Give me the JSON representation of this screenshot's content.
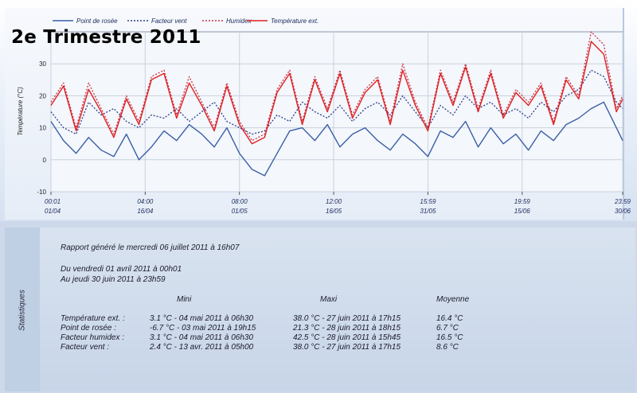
{
  "page": {
    "headline": "2e Trimestre 2011"
  },
  "chart_data": {
    "type": "line",
    "ylabel": "Température (°C)",
    "ylim": [
      -10,
      40
    ],
    "yticks": [
      -10,
      0,
      10,
      20,
      30
    ],
    "grid": true,
    "legend_position": "top",
    "x_tick_labels": [
      {
        "time": "00:01",
        "date": "01/04"
      },
      {
        "time": "04:00",
        "date": "16/04"
      },
      {
        "time": "08:00",
        "date": "01/05"
      },
      {
        "time": "12:00",
        "date": "16/05"
      },
      {
        "time": "15:59",
        "date": "31/05"
      },
      {
        "time": "19:59",
        "date": "15/06"
      },
      {
        "time": "23:59",
        "date": "30/06"
      }
    ],
    "x_days": [
      0,
      15,
      30,
      45,
      60,
      75,
      91
    ],
    "series": [
      {
        "name": "Point de rosée",
        "color": "#3a5fa8",
        "dash": "solid",
        "x": [
          0,
          2,
          4,
          6,
          8,
          10,
          12,
          14,
          16,
          18,
          20,
          22,
          24,
          26,
          28,
          30,
          32,
          34,
          36,
          38,
          40,
          42,
          44,
          46,
          48,
          50,
          52,
          54,
          56,
          58,
          60,
          62,
          64,
          66,
          68,
          70,
          72,
          74,
          76,
          78,
          80,
          82,
          84,
          86,
          88,
          90,
          91
        ],
        "y": [
          12,
          6,
          2,
          7,
          3,
          1,
          8,
          0,
          4,
          9,
          6,
          11,
          8,
          4,
          10,
          2,
          -3,
          -5,
          2,
          9,
          10,
          6,
          11,
          4,
          8,
          10,
          6,
          3,
          8,
          5,
          1,
          9,
          7,
          12,
          4,
          10,
          5,
          8,
          3,
          9,
          6,
          11,
          13,
          16,
          18,
          10,
          6
        ]
      },
      {
        "name": "Facteur vent",
        "color": "#2b3f8a",
        "dash": "dotted",
        "x": [
          0,
          2,
          4,
          6,
          8,
          10,
          12,
          14,
          16,
          18,
          20,
          22,
          24,
          26,
          28,
          30,
          32,
          34,
          36,
          38,
          40,
          42,
          44,
          46,
          48,
          50,
          52,
          54,
          56,
          58,
          60,
          62,
          64,
          66,
          68,
          70,
          72,
          74,
          76,
          78,
          80,
          82,
          84,
          86,
          88,
          90,
          91
        ],
        "y": [
          15,
          10,
          8,
          18,
          14,
          16,
          12,
          10,
          14,
          13,
          16,
          12,
          15,
          18,
          12,
          10,
          8,
          9,
          14,
          12,
          18,
          15,
          13,
          17,
          12,
          16,
          18,
          14,
          20,
          15,
          10,
          17,
          14,
          20,
          16,
          18,
          14,
          16,
          13,
          18,
          15,
          20,
          22,
          28,
          26,
          18,
          16
        ]
      },
      {
        "name": "Humidex",
        "color": "#c8324a",
        "dash": "dotted",
        "x": [
          0,
          2,
          4,
          6,
          8,
          10,
          12,
          14,
          16,
          18,
          20,
          22,
          24,
          26,
          28,
          30,
          32,
          34,
          36,
          38,
          40,
          42,
          44,
          46,
          48,
          50,
          52,
          54,
          56,
          58,
          60,
          62,
          64,
          66,
          68,
          70,
          72,
          74,
          76,
          78,
          80,
          82,
          84,
          86,
          88,
          90,
          91
        ],
        "y": [
          18,
          24,
          10,
          24,
          16,
          8,
          20,
          12,
          26,
          28,
          14,
          26,
          18,
          10,
          24,
          12,
          6,
          8,
          22,
          28,
          12,
          26,
          16,
          28,
          14,
          22,
          26,
          12,
          30,
          18,
          10,
          28,
          18,
          30,
          16,
          28,
          14,
          22,
          18,
          24,
          12,
          26,
          20,
          40,
          36,
          16,
          20
        ]
      },
      {
        "name": "Température ext.",
        "color": "#e02020",
        "dash": "solid",
        "x": [
          0,
          2,
          4,
          6,
          8,
          10,
          12,
          14,
          16,
          18,
          20,
          22,
          24,
          26,
          28,
          30,
          32,
          34,
          36,
          38,
          40,
          42,
          44,
          46,
          48,
          50,
          52,
          54,
          56,
          58,
          60,
          62,
          64,
          66,
          68,
          70,
          72,
          74,
          76,
          78,
          80,
          82,
          84,
          86,
          88,
          90,
          91
        ],
        "y": [
          17,
          23,
          9,
          22,
          15,
          7,
          19,
          11,
          25,
          27,
          13,
          24,
          17,
          9,
          23,
          11,
          5,
          7,
          21,
          27,
          11,
          25,
          15,
          27,
          13,
          21,
          25,
          11,
          28,
          17,
          9,
          27,
          17,
          29,
          15,
          27,
          13,
          21,
          17,
          23,
          11,
          25,
          19,
          37,
          33,
          15,
          19
        ]
      }
    ]
  },
  "statistics": {
    "side_label": "Statistiques",
    "report_line": "Rapport généré le mercredi 06 juillet 2011 à 16h07",
    "period_from": "Du vendredi 01 avril 2011 à 00h01",
    "period_to": "Au jeudi 30 juin 2011 à 23h59",
    "col_min": "Mini",
    "col_max": "Maxi",
    "col_avg": "Moyenne",
    "rows": [
      {
        "label": "Température ext. :",
        "min": "3.1 °C - 04 mai 2011 à 06h30",
        "max": "38.0 °C - 27 juin 2011 à 17h15",
        "avg": "16.4 °C"
      },
      {
        "label": "Point de rosée :",
        "min": "-6.7 °C - 03 mai 2011 à 19h15",
        "max": "21.3 °C - 28 juin 2011 à 18h15",
        "avg": "6.7 °C"
      },
      {
        "label": "Facteur humidex :",
        "min": "3.1 °C - 04 mai 2011 à 06h30",
        "max": "42.5 °C - 28 juin 2011 à 15h45",
        "avg": "16.5 °C"
      },
      {
        "label": "Facteur vent :",
        "min": "2.4 °C - 13 avr. 2011 à 05h00",
        "max": "38.0 °C - 27 juin 2011 à 17h15",
        "avg": "8.6 °C"
      }
    ]
  }
}
